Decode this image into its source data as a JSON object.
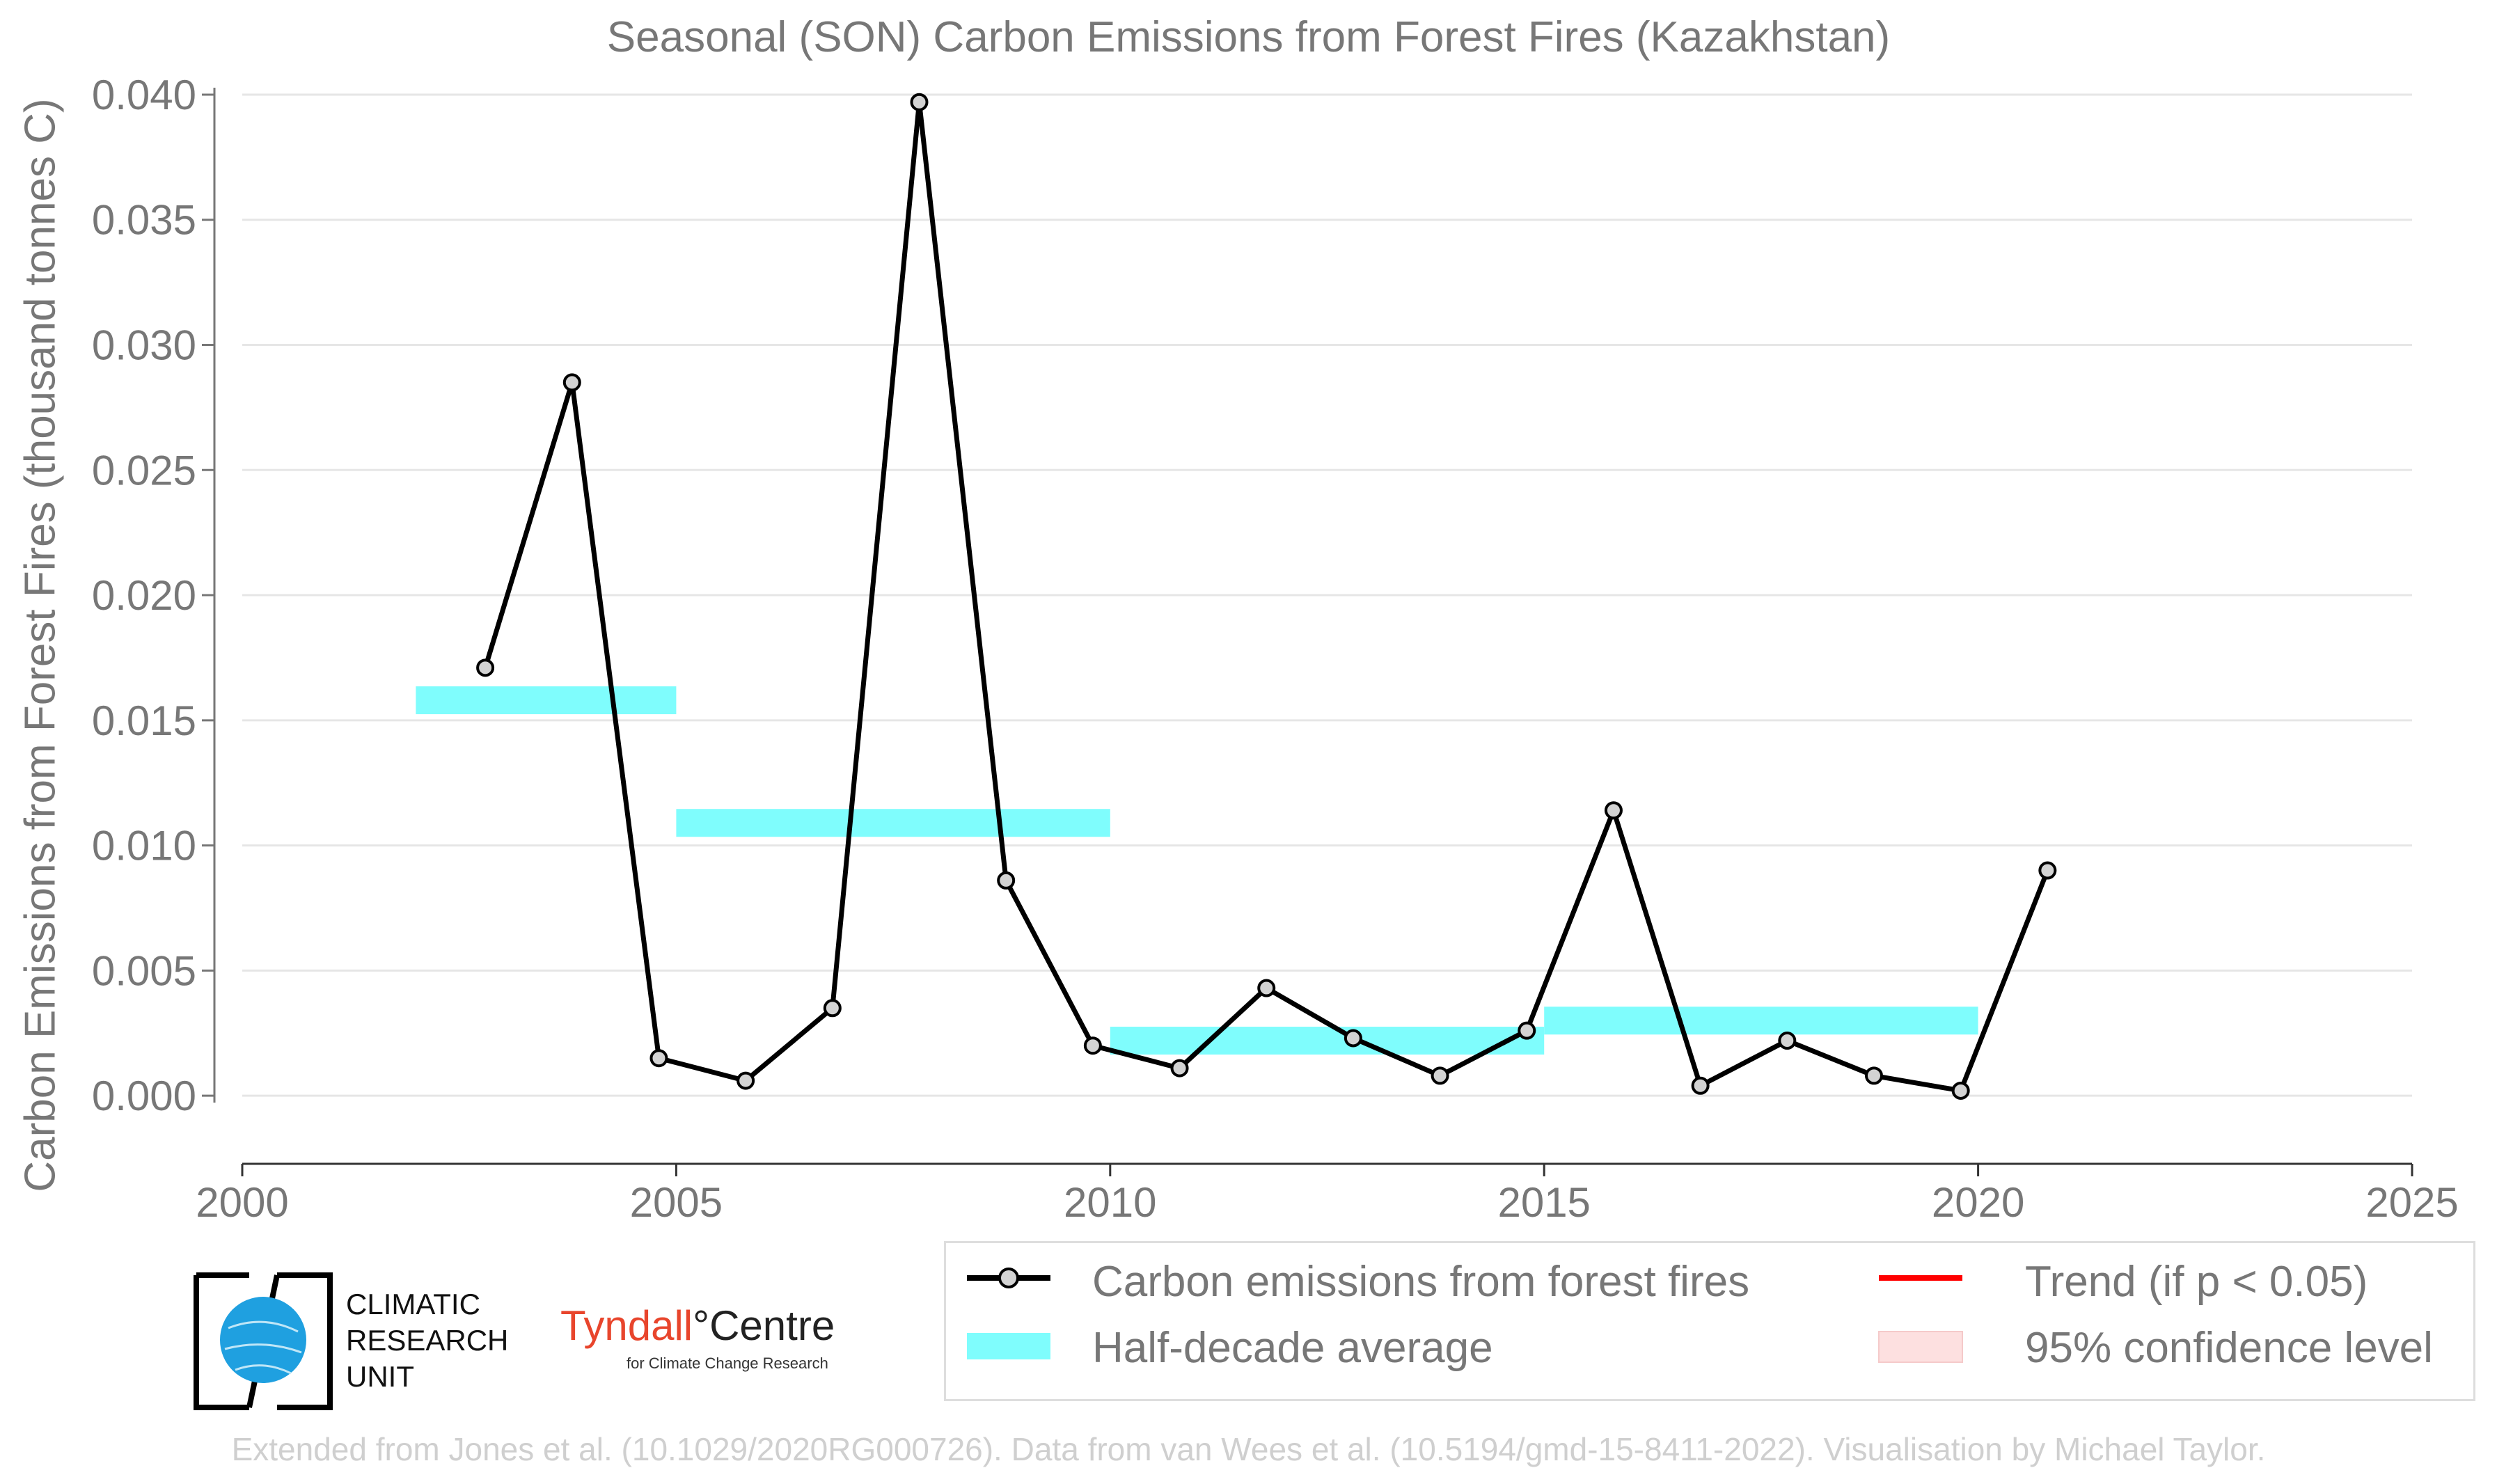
{
  "chart_data": {
    "type": "line",
    "title": "Seasonal (SON) Carbon Emissions from Forest Fires (Kazakhstan)",
    "xlabel": "",
    "ylabel": "Carbon Emissions from Forest Fires (thousand tonnes C)",
    "xlim": [
      2000,
      2025
    ],
    "ylim": [
      -0.003,
      0.041
    ],
    "xticks": [
      "2000",
      "2005",
      "2010",
      "2015",
      "2020",
      "2025"
    ],
    "yticks": [
      "0.000",
      "0.005",
      "0.010",
      "0.015",
      "0.020",
      "0.025",
      "0.030",
      "0.035",
      "0.040"
    ],
    "grid": "horizontal",
    "legend_position": "bottom",
    "series": [
      {
        "name": "Carbon emissions from forest fires",
        "color": "#000000",
        "x": [
          2002.8,
          2003.8,
          2004.8,
          2005.8,
          2006.8,
          2007.8,
          2008.8,
          2009.8,
          2010.8,
          2011.8,
          2012.8,
          2013.8,
          2014.8,
          2015.8,
          2016.8,
          2017.8,
          2018.8,
          2019.8,
          2020.8
        ],
        "y": [
          0.0171,
          0.0285,
          0.0015,
          0.0006,
          0.0035,
          0.0397,
          0.0086,
          0.002,
          0.0011,
          0.0043,
          0.0023,
          0.0008,
          0.0026,
          0.0114,
          0.0004,
          0.0022,
          0.0008,
          0.0002,
          0.009
        ]
      }
    ],
    "half_decade_average": {
      "name": "Half-decade average",
      "color": "#7ffdfd",
      "bands": [
        {
          "x0": 2002,
          "x1": 2005,
          "y": 0.0158
        },
        {
          "x0": 2005,
          "x1": 2010,
          "y": 0.0109
        },
        {
          "x0": 2010,
          "x1": 2015,
          "y": 0.0022
        },
        {
          "x0": 2015,
          "x1": 2020,
          "y": 0.003
        }
      ]
    },
    "legend": [
      {
        "label": "Carbon emissions from forest fires",
        "symbol": "line-marker",
        "color": "#000000"
      },
      {
        "label": "Half-decade average",
        "symbol": "band",
        "color": "#7ffdfd"
      },
      {
        "label": "Trend (if p < 0.05)",
        "symbol": "line",
        "color": "#ff0000"
      },
      {
        "label": "95% confidence level",
        "symbol": "band",
        "color": "#fde0e0"
      }
    ]
  },
  "logos": {
    "cru_line1": "CLIMATIC",
    "cru_line2": "RESEARCH",
    "cru_line3": "UNIT",
    "tyndall_part1": "Tyndall",
    "tyndall_part2": "°Centre",
    "tyndall_sub": "for Climate Change Research"
  },
  "footer": "Extended from Jones et al. (10.1029/2020RG000726). Data from van Wees et al. (10.5194/gmd-15-8411-2022). Visualisation by Michael Taylor."
}
